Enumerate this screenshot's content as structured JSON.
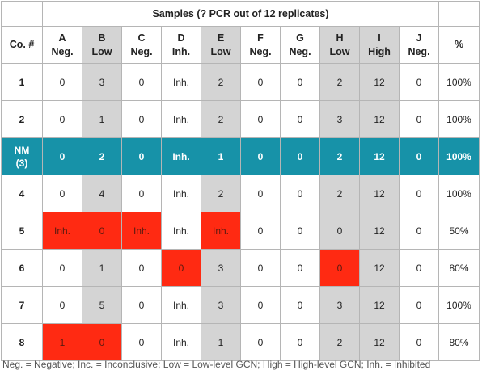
{
  "title": "Samples (? PCR out of 12 replicates)",
  "headers": [
    {
      "top": "Co. #",
      "bottom": ""
    },
    {
      "top": "A",
      "bottom": "Neg."
    },
    {
      "top": "B",
      "bottom": "Low"
    },
    {
      "top": "C",
      "bottom": "Neg."
    },
    {
      "top": "D",
      "bottom": "Inh."
    },
    {
      "top": "E",
      "bottom": "Low"
    },
    {
      "top": "F",
      "bottom": "Neg."
    },
    {
      "top": "G",
      "bottom": "Neg."
    },
    {
      "top": "H",
      "bottom": "Low"
    },
    {
      "top": "I",
      "bottom": "High"
    },
    {
      "top": "J",
      "bottom": "Neg."
    },
    {
      "top": "%",
      "bottom": ""
    }
  ],
  "rows": [
    {
      "co": "1",
      "cells": [
        "0",
        "3",
        "0",
        "Inh.",
        "2",
        "0",
        "0",
        "2",
        "12",
        "0"
      ],
      "pct": "100%"
    },
    {
      "co": "2",
      "cells": [
        "0",
        "1",
        "0",
        "Inh.",
        "2",
        "0",
        "0",
        "3",
        "12",
        "0"
      ],
      "pct": "100%"
    },
    {
      "co": "NM\n(3)",
      "cells": [
        "0",
        "2",
        "0",
        "Inh.",
        "1",
        "0",
        "0",
        "2",
        "12",
        "0"
      ],
      "pct": "100%"
    },
    {
      "co": "4",
      "cells": [
        "0",
        "4",
        "0",
        "Inh.",
        "2",
        "0",
        "0",
        "2",
        "12",
        "0"
      ],
      "pct": "100%"
    },
    {
      "co": "5",
      "cells": [
        "Inh.",
        "0",
        "Inh.",
        "Inh.",
        "Inh.",
        "0",
        "0",
        "0",
        "12",
        "0"
      ],
      "pct": "50%"
    },
    {
      "co": "6",
      "cells": [
        "0",
        "1",
        "0",
        "0",
        "3",
        "0",
        "0",
        "0",
        "12",
        "0"
      ],
      "pct": "80%"
    },
    {
      "co": "7",
      "cells": [
        "0",
        "5",
        "0",
        "Inh.",
        "3",
        "0",
        "0",
        "3",
        "12",
        "0"
      ],
      "pct": "100%"
    },
    {
      "co": "8",
      "cells": [
        "1",
        "0",
        "0",
        "Inh.",
        "1",
        "0",
        "0",
        "2",
        "12",
        "0"
      ],
      "pct": "80%"
    }
  ],
  "colors": {
    "highlight_row": "#1792a8",
    "shaded_column": "#d4d4d4",
    "flagged_cell": "#ff2a12"
  },
  "legend": "Neg. = Negative; Inc. = Inconclusive; Low = Low-level GCN; High = High-level GCN; Inh. = Inhibited"
}
